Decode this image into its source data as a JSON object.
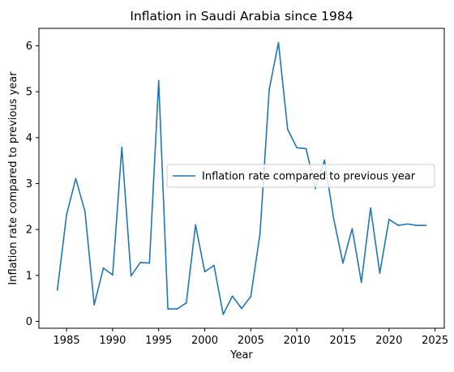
{
  "chart_data": {
    "type": "line",
    "title": "Inflation in Saudi Arabia since 1984",
    "xlabel": "Year",
    "ylabel": "Inflation rate compared to previous year",
    "xlim": [
      1982,
      2026
    ],
    "ylim": [
      -0.15,
      6.38
    ],
    "x_ticks": [
      1985,
      1990,
      1995,
      2000,
      2005,
      2010,
      2015,
      2020,
      2025
    ],
    "y_ticks": [
      0,
      1,
      2,
      3,
      4,
      5,
      6
    ],
    "grid": false,
    "legend_position": "center-right",
    "series": [
      {
        "name": "Inflation rate compared to previous year",
        "color": "#1f77b4",
        "x": [
          1984,
          1985,
          1986,
          1987,
          1988,
          1989,
          1990,
          1991,
          1992,
          1993,
          1994,
          1995,
          1996,
          1997,
          1998,
          1999,
          2000,
          2001,
          2002,
          2003,
          2004,
          2005,
          2006,
          2007,
          2008,
          2009,
          2010,
          2011,
          2012,
          2013,
          2014,
          2015,
          2016,
          2017,
          2018,
          2019,
          2020,
          2021,
          2022,
          2023,
          2024
        ],
        "y": [
          0.68,
          2.32,
          3.11,
          2.39,
          0.36,
          1.16,
          1.01,
          3.79,
          0.99,
          1.28,
          1.27,
          5.24,
          0.27,
          0.27,
          0.4,
          2.1,
          1.08,
          1.22,
          0.15,
          0.55,
          0.28,
          0.54,
          1.91,
          5.05,
          6.07,
          4.18,
          3.78,
          3.76,
          2.89,
          3.51,
          2.23,
          1.27,
          2.02,
          0.85,
          2.47,
          1.05,
          2.22,
          2.09,
          2.12,
          2.09,
          2.09
        ]
      }
    ]
  }
}
